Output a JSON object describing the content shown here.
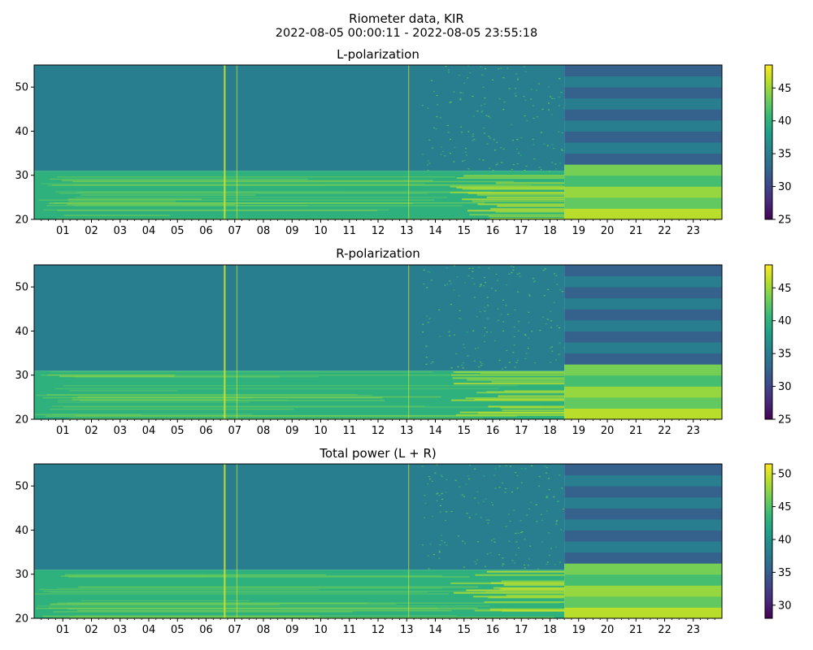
{
  "figure": {
    "title": "Riometer data, KIR",
    "subtitle": "2022-08-05 00:00:11 - 2022-08-05 23:55:18"
  },
  "colors": {
    "viridis": [
      "#440154",
      "#482878",
      "#3e4989",
      "#31688e",
      "#26828e",
      "#1f9e89",
      "#35b779",
      "#6ece58",
      "#b5de2b",
      "#fde725"
    ]
  },
  "chart_data": [
    {
      "type": "heatmap",
      "title": "L-polarization",
      "xlabel": "",
      "ylabel": "",
      "x_ticks": [
        "01",
        "02",
        "03",
        "04",
        "05",
        "06",
        "07",
        "08",
        "09",
        "10",
        "11",
        "12",
        "13",
        "14",
        "15",
        "16",
        "17",
        "18",
        "19",
        "20",
        "21",
        "22",
        "23"
      ],
      "x_range_hours": [
        0,
        24
      ],
      "y_ticks": [
        20,
        30,
        40,
        50
      ],
      "ylim": [
        20,
        55
      ],
      "colorbar": {
        "range": [
          25,
          48.5
        ],
        "ticks": [
          25,
          30,
          35,
          40,
          45
        ]
      },
      "levels": {
        "upper_band": 35,
        "lower_band": 40,
        "late_upper_band": 33.5,
        "late_lower_band": 44.5
      },
      "band_split_y": 31,
      "regime_change_hour": 18.5,
      "spikes_hours": [
        6.62,
        7.06,
        13.05
      ]
    },
    {
      "type": "heatmap",
      "title": "R-polarization",
      "xlabel": "",
      "ylabel": "",
      "x_ticks": [
        "01",
        "02",
        "03",
        "04",
        "05",
        "06",
        "07",
        "08",
        "09",
        "10",
        "11",
        "12",
        "13",
        "14",
        "15",
        "16",
        "17",
        "18",
        "19",
        "20",
        "21",
        "22",
        "23"
      ],
      "x_range_hours": [
        0,
        24
      ],
      "y_ticks": [
        20,
        30,
        40,
        50
      ],
      "ylim": [
        20,
        55
      ],
      "colorbar": {
        "range": [
          25,
          48.5
        ],
        "ticks": [
          25,
          30,
          35,
          40,
          45
        ]
      },
      "levels": {
        "upper_band": 35,
        "lower_band": 40,
        "late_upper_band": 33.5,
        "late_lower_band": 44.5
      },
      "band_split_y": 31,
      "regime_change_hour": 18.5,
      "spikes_hours": [
        6.62,
        7.06,
        13.05
      ]
    },
    {
      "type": "heatmap",
      "title": "Total power (L + R)",
      "xlabel": "",
      "ylabel": "",
      "x_ticks": [
        "01",
        "02",
        "03",
        "04",
        "05",
        "06",
        "07",
        "08",
        "09",
        "10",
        "11",
        "12",
        "13",
        "14",
        "15",
        "16",
        "17",
        "18",
        "19",
        "20",
        "21",
        "22",
        "23"
      ],
      "x_range_hours": [
        0,
        24
      ],
      "y_ticks": [
        20,
        30,
        40,
        50
      ],
      "ylim": [
        20,
        55
      ],
      "colorbar": {
        "range": [
          28,
          51.5
        ],
        "ticks": [
          30,
          35,
          40,
          45,
          50
        ]
      },
      "levels": {
        "upper_band": 38,
        "lower_band": 43,
        "late_upper_band": 36.5,
        "late_lower_band": 47.5
      },
      "band_split_y": 31,
      "regime_change_hour": 18.5,
      "spikes_hours": [
        6.62,
        7.06,
        13.05
      ]
    }
  ]
}
